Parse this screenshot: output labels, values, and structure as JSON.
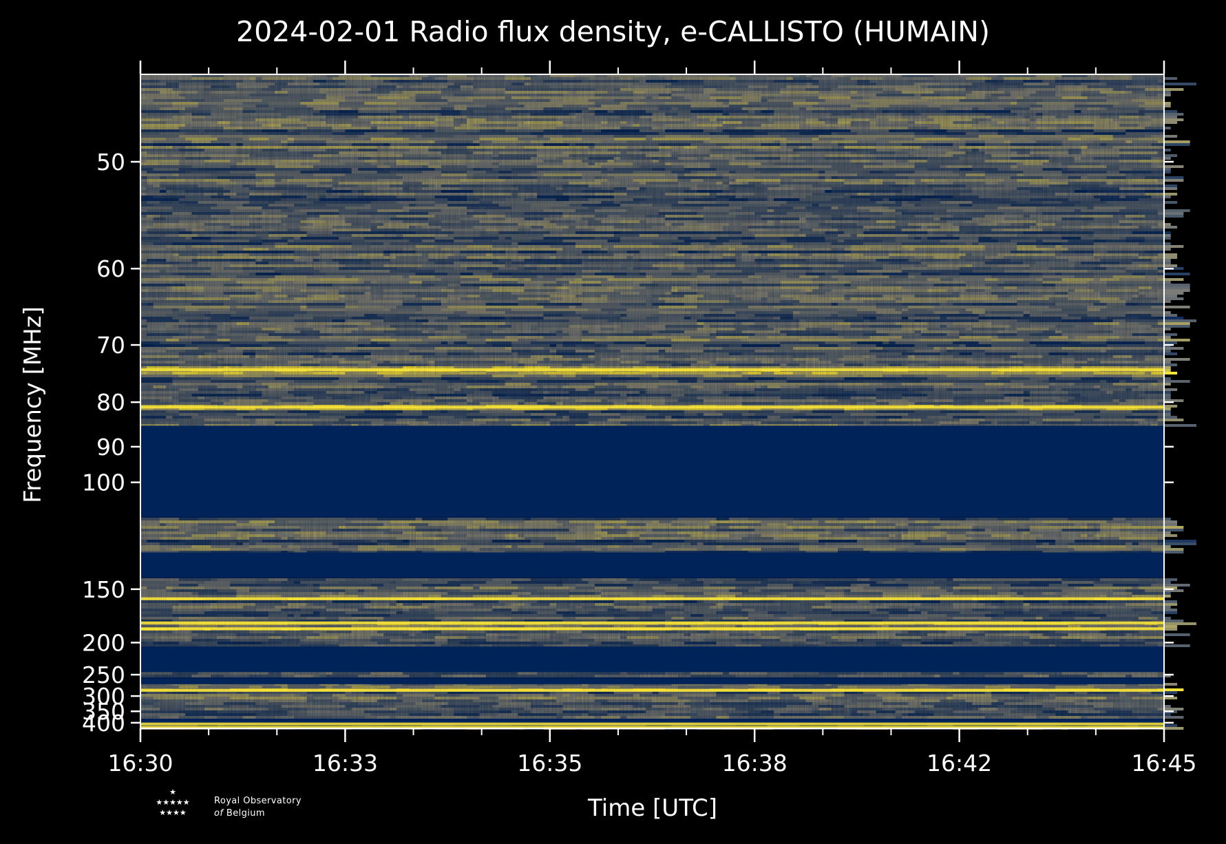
{
  "chart_data": {
    "type": "heatmap",
    "title": "2024-02-01 Radio flux density, e-CALLISTO (HUMAIN)",
    "xlabel": "Time [UTC]",
    "ylabel": "Frequency [MHz]",
    "x_tick_labels": [
      "16:30",
      "16:33",
      "16:35",
      "16:38",
      "16:42",
      "16:45"
    ],
    "y_tick_labels": [
      "50",
      "60",
      "70",
      "80",
      "90",
      "100",
      "150",
      "200",
      "250",
      "300",
      "350",
      "400"
    ],
    "y_ticks": [
      50,
      60,
      70,
      80,
      90,
      100,
      150,
      200,
      250,
      300,
      350,
      400
    ],
    "yscale": "reciprocal",
    "ylim": [
      44,
      430
    ],
    "colormap": {
      "low": "#00235a",
      "mid": "#7f7f77",
      "high": "#fde737"
    },
    "empty_bands_mhz": [
      [
        85,
        112
      ],
      [
        128,
        142
      ],
      [
        205,
        245
      ],
      [
        258,
        270
      ],
      [
        382,
        404
      ]
    ],
    "bright_lines_mhz": [
      74,
      81,
      157,
      178,
      184,
      285,
      406,
      424
    ],
    "grid": false
  },
  "colors": {
    "background": "#000000",
    "foreground": "#ffffff"
  },
  "logo": {
    "stars_top": "★",
    "stars_mid": "★★★★★",
    "stars_bottom": "★★★★",
    "line1": "Royal Observatory",
    "line2_of": "of",
    "line2_rest": " Belgium"
  }
}
